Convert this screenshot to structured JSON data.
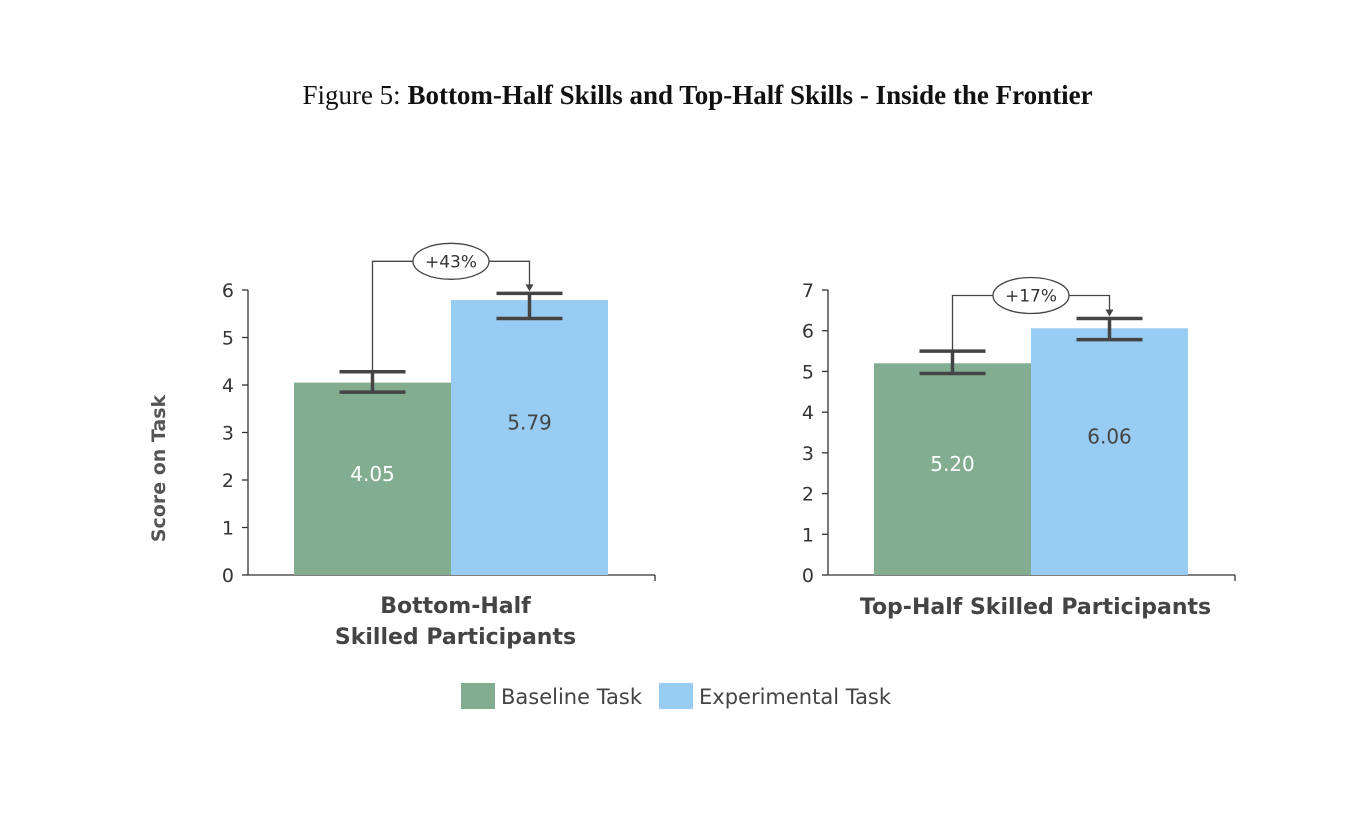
{
  "caption": {
    "prefix": "Figure 5:",
    "title": "Bottom-Half Skills and Top-Half Skills - Inside the Frontier"
  },
  "colors": {
    "baseline": "#82ad91",
    "experimental": "#99ccf2"
  },
  "chart_data": [
    {
      "type": "bar",
      "ylabel": "Score on Task",
      "ylim": [
        0,
        6
      ],
      "yticks": [
        0,
        1,
        2,
        3,
        4,
        5,
        6
      ],
      "category_lines": [
        "Bottom-Half",
        "Skilled Participants"
      ],
      "series": [
        {
          "name": "Baseline Task",
          "value": 4.05,
          "label": "4.05",
          "error": [
            3.85,
            4.28
          ]
        },
        {
          "name": "Experimental Task",
          "value": 5.79,
          "label": "5.79",
          "error": [
            5.4,
            5.93
          ]
        }
      ],
      "annotation": "+43%"
    },
    {
      "type": "bar",
      "ylabel": "",
      "ylim": [
        0,
        7
      ],
      "yticks": [
        0,
        1,
        2,
        3,
        4,
        5,
        6,
        7
      ],
      "category_lines": [
        "Top-Half Skilled Participants"
      ],
      "series": [
        {
          "name": "Baseline Task",
          "value": 5.2,
          "label": "5.20",
          "error": [
            4.95,
            5.5
          ]
        },
        {
          "name": "Experimental Task",
          "value": 6.06,
          "label": "6.06",
          "error": [
            5.78,
            6.3
          ]
        }
      ],
      "annotation": "+17%"
    }
  ],
  "legend": {
    "placement": "bottom-center",
    "items": [
      "Baseline Task",
      "Experimental Task"
    ]
  }
}
